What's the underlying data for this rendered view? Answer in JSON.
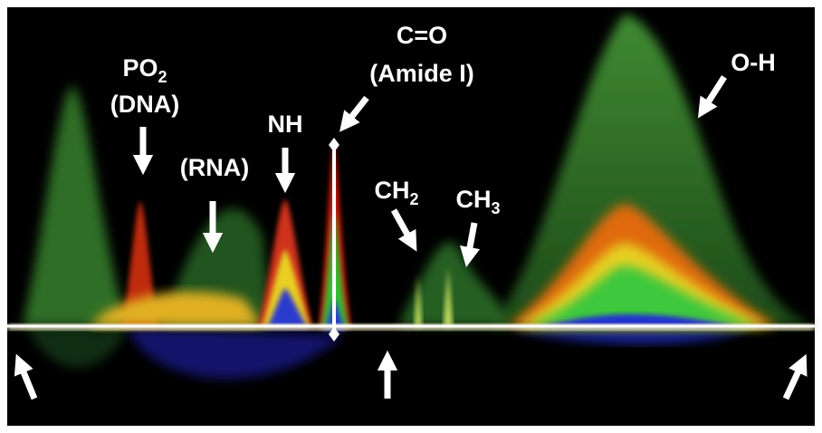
{
  "annotations": [
    {
      "label": "PO",
      "subscript": "2"
    },
    {
      "label": "(DNA)"
    },
    {
      "label": "(RNA)"
    },
    {
      "label": "NH"
    },
    {
      "label": "C=O"
    },
    {
      "label": "(Amide I)"
    },
    {
      "label": "CH",
      "subscript": "2"
    },
    {
      "label": "CH",
      "subscript": "3"
    },
    {
      "label": "O-H"
    }
  ]
}
